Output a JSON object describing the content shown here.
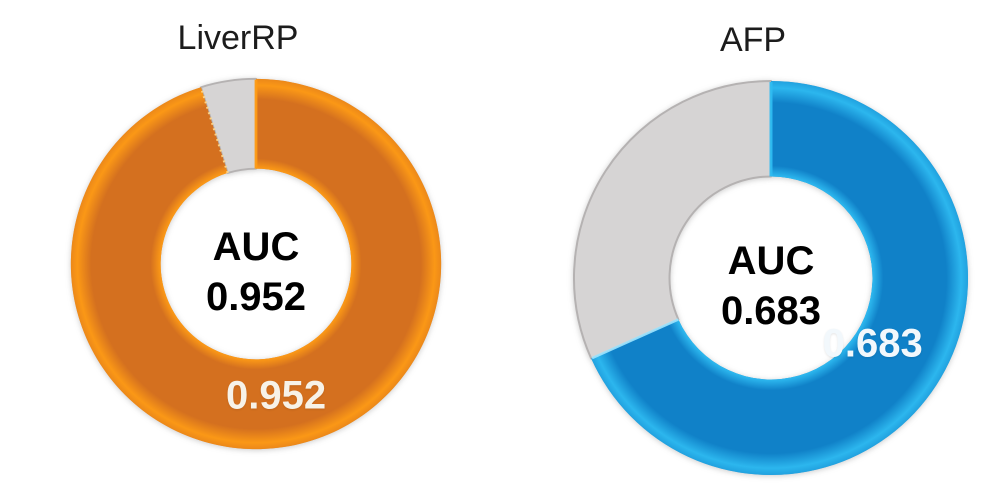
{
  "page": {
    "background": "#FFFFFF"
  },
  "chart_data": [
    {
      "type": "pie",
      "subtype": "donut",
      "title": "LiverRP",
      "center_label": {
        "line1": "AUC",
        "line2": "0.952"
      },
      "slices": [
        {
          "name": "AUC",
          "value": 0.952,
          "data_label": "0.952",
          "color": "#D4701F",
          "glow_color": "#FF9C15",
          "data_label_color": "#F7F2E8"
        },
        {
          "name": "remainder",
          "value": 0.048,
          "data_label": "",
          "color": "#D6D4D4",
          "stroke": "#B5B2B2"
        }
      ],
      "start_angle_deg": 0,
      "direction": "clockwise",
      "hole_ratio": 0.515,
      "legend": "none",
      "edge_accent": {
        "color": "#FFD98F",
        "dashed": true
      }
    },
    {
      "type": "pie",
      "subtype": "donut",
      "title": "AFP",
      "center_label": {
        "line1": "AUC",
        "line2": "0.683"
      },
      "slices": [
        {
          "name": "AUC",
          "value": 0.683,
          "data_label": "0.683",
          "color": "#1081C8",
          "glow_color": "#2FBCF2",
          "data_label_color": "#F2F8FC"
        },
        {
          "name": "remainder",
          "value": 0.317,
          "data_label": "",
          "color": "#D6D4D4",
          "stroke": "#B5B2B2"
        }
      ],
      "start_angle_deg": 0,
      "direction": "clockwise",
      "hole_ratio": 0.515,
      "legend": "none",
      "edge_accent": {
        "color": "#9FE5FF",
        "dashed": false
      }
    }
  ]
}
